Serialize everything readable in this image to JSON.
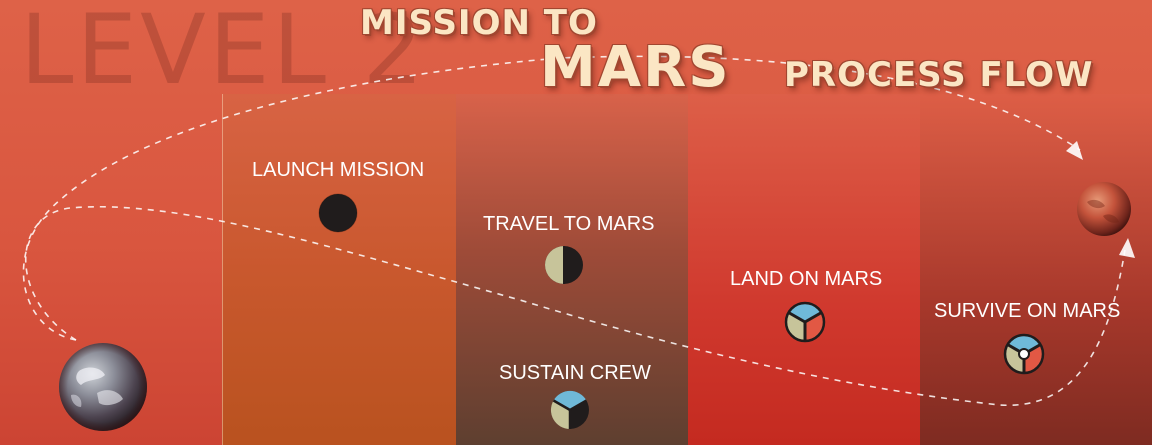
{
  "level": "LEVEL 2",
  "title": {
    "line1": "MISSION TO",
    "line2": "MARS",
    "line3": "PROCESS FLOW"
  },
  "steps": [
    {
      "label": "LAUNCH MISSION",
      "icon": "empty-circle-icon"
    },
    {
      "label": "TRAVEL TO MARS",
      "icon": "one-quarter-circle-icon"
    },
    {
      "label": "SUSTAIN CREW",
      "icon": "two-thirds-circle-icon"
    },
    {
      "label": "LAND ON MARS",
      "icon": "full-circle-icon"
    },
    {
      "label": "SURVIVE ON MARS",
      "icon": "full-circle-icon"
    }
  ],
  "colors": {
    "segment_blue": "#6fb9d8",
    "segment_beige": "#c7c49a",
    "segment_red": "#e25844",
    "icon_dark": "#201c1c",
    "title_fill": "#fbe6c4"
  }
}
